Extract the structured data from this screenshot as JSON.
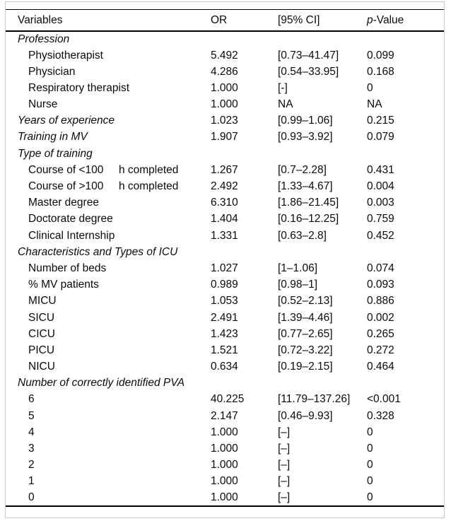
{
  "header": {
    "variables": "Variables",
    "or": "OR",
    "ci": "[95% CI]",
    "p_italic": "p",
    "p_suffix": "-Value"
  },
  "rows": [
    {
      "label": "Profession",
      "italic": true,
      "indent": false,
      "or": "",
      "ci": "",
      "p": ""
    },
    {
      "label": "Physiotherapist",
      "italic": false,
      "indent": true,
      "or": "5.492",
      "ci": "[0.73–41.47]",
      "p": "0.099"
    },
    {
      "label": "Physician",
      "italic": false,
      "indent": true,
      "or": "4.286",
      "ci": "[0.54–33.95]",
      "p": "0.168"
    },
    {
      "label": "Respiratory therapist",
      "italic": false,
      "indent": true,
      "or": "1.000",
      "ci": "[-]",
      "p": "0"
    },
    {
      "label": "Nurse",
      "italic": false,
      "indent": true,
      "or": "1.000",
      "ci": "NA",
      "p": "NA"
    },
    {
      "label": "Years of experience",
      "italic": true,
      "indent": false,
      "or": "1.023",
      "ci": "[0.99–1.06]",
      "p": "0.215"
    },
    {
      "label": "Training in MV",
      "italic": true,
      "indent": false,
      "or": "1.907",
      "ci": "[0.93–3.92]",
      "p": "0.079"
    },
    {
      "label": "Type of training",
      "italic": true,
      "indent": false,
      "or": "",
      "ci": "",
      "p": ""
    },
    {
      "label": "Course of <100     h completed",
      "italic": false,
      "indent": true,
      "or": "1.267",
      "ci": "[0.7–2.28]",
      "p": "0.431"
    },
    {
      "label": "Course of >100     h completed",
      "italic": false,
      "indent": true,
      "or": "2.492",
      "ci": "[1.33–4.67]",
      "p": "0.004"
    },
    {
      "label": "Master degree",
      "italic": false,
      "indent": true,
      "or": "6.310",
      "ci": "[1.86–21.45]",
      "p": "0.003"
    },
    {
      "label": "Doctorate degree",
      "italic": false,
      "indent": true,
      "or": "1.404",
      "ci": "[0.16–12.25]",
      "p": "0.759"
    },
    {
      "label": "Clinical Internship",
      "italic": false,
      "indent": true,
      "or": "1.331",
      "ci": "[0.63–2.8]",
      "p": "0.452"
    },
    {
      "label": "Characteristics and Types of ICU",
      "italic": true,
      "indent": false,
      "or": "",
      "ci": "",
      "p": ""
    },
    {
      "label": "Number of beds",
      "italic": false,
      "indent": true,
      "or": "1.027",
      "ci": "[1–1.06]",
      "p": "0.074"
    },
    {
      "label": "% MV patients",
      "italic": false,
      "indent": true,
      "or": "0.989",
      "ci": "[0.98–1]",
      "p": "0.093"
    },
    {
      "label": "MICU",
      "italic": false,
      "indent": true,
      "or": "1.053",
      "ci": "[0.52–2.13]",
      "p": "0.886"
    },
    {
      "label": "SICU",
      "italic": false,
      "indent": true,
      "or": "2.491",
      "ci": "[1.39–4.46]",
      "p": "0.002"
    },
    {
      "label": "CICU",
      "italic": false,
      "indent": true,
      "or": "1.423",
      "ci": "[0.77–2.65]",
      "p": "0.265"
    },
    {
      "label": "PICU",
      "italic": false,
      "indent": true,
      "or": "1.521",
      "ci": "[0.72–3.22]",
      "p": "0.272"
    },
    {
      "label": "NICU",
      "italic": false,
      "indent": true,
      "or": "0.634",
      "ci": "[0.19–2.15]",
      "p": "0.464"
    },
    {
      "label": "Number of correctly identified PVA",
      "italic": true,
      "indent": false,
      "or": "",
      "ci": "",
      "p": ""
    },
    {
      "label": "6",
      "italic": false,
      "indent": true,
      "or": "40.225",
      "ci": "[11.79–137.26]",
      "p": "<0.001"
    },
    {
      "label": "5",
      "italic": false,
      "indent": true,
      "or": "2.147",
      "ci": "[0.46–9.93]",
      "p": "0.328"
    },
    {
      "label": "4",
      "italic": false,
      "indent": true,
      "or": "1.000",
      "ci": "[–]",
      "p": "0"
    },
    {
      "label": "3",
      "italic": false,
      "indent": true,
      "or": "1.000",
      "ci": "[–]",
      "p": "0"
    },
    {
      "label": "2",
      "italic": false,
      "indent": true,
      "or": "1.000",
      "ci": "[–]",
      "p": "0"
    },
    {
      "label": "1",
      "italic": false,
      "indent": true,
      "or": "1.000",
      "ci": "[–]",
      "p": "0"
    },
    {
      "label": "0",
      "italic": false,
      "indent": true,
      "or": "1.000",
      "ci": "[–]",
      "p": "0"
    }
  ]
}
